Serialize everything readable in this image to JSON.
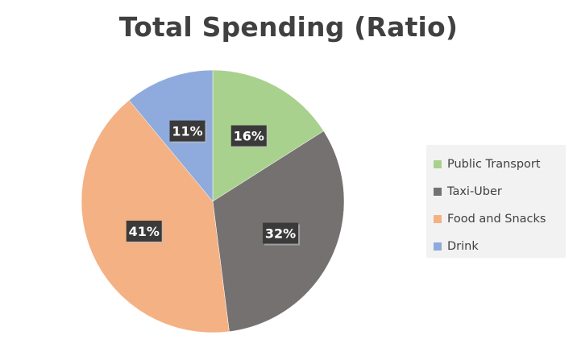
{
  "chart_data": {
    "type": "pie",
    "title": "Total Spending (Ratio)",
    "categories": [
      "Public Transport",
      "Taxi-Uber",
      "Food and Snacks",
      "Drink"
    ],
    "values": [
      16,
      32,
      41,
      11
    ],
    "data_labels": [
      "16%",
      "32%",
      "41%",
      "11%"
    ],
    "colors": [
      "#a9d18e",
      "#767171",
      "#f4b183",
      "#8faadc"
    ],
    "legend_position": "right",
    "label_style": "dark boxes"
  }
}
